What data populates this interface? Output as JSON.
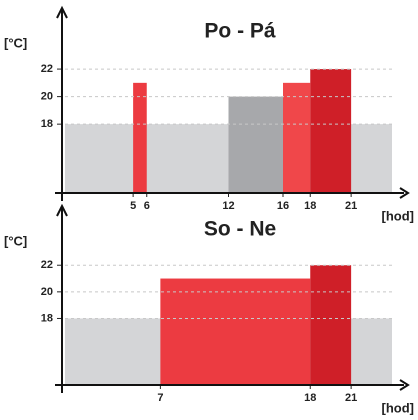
{
  "chart_data": [
    {
      "type": "range-bar",
      "title": "Po - Pá",
      "y_label": "[°C]",
      "x_label": "[hod]",
      "xlim": [
        0,
        24
      ],
      "xticks": [
        5,
        6,
        12,
        16,
        18,
        21
      ],
      "ylim": [
        13,
        26
      ],
      "yticks": [
        18,
        20,
        22
      ],
      "grid": true,
      "bars": [
        {
          "start": 0,
          "end": 24,
          "value": 18,
          "color": "#d4d5d7"
        },
        {
          "start": 5,
          "end": 6,
          "value": 21,
          "color": "#ec3b41"
        },
        {
          "start": 12,
          "end": 16,
          "value": 20,
          "color": "#a7a8ab"
        },
        {
          "start": 16,
          "end": 18,
          "value": 21,
          "color": "#f0474a"
        },
        {
          "start": 18,
          "end": 21,
          "value": 22,
          "color": "#cf1f28"
        }
      ]
    },
    {
      "type": "range-bar",
      "title": "So - Ne",
      "y_label": "[°C]",
      "x_label": "[hod]",
      "xlim": [
        0,
        24
      ],
      "xticks": [
        7,
        18,
        21
      ],
      "ylim": [
        13,
        26
      ],
      "yticks": [
        18,
        20,
        22
      ],
      "grid": true,
      "bars": [
        {
          "start": 0,
          "end": 24,
          "value": 18,
          "color": "#d4d5d7"
        },
        {
          "start": 7,
          "end": 18,
          "value": 21,
          "color": "#ec3b41"
        },
        {
          "start": 18,
          "end": 21,
          "value": 22,
          "color": "#cf1f28"
        }
      ]
    }
  ]
}
